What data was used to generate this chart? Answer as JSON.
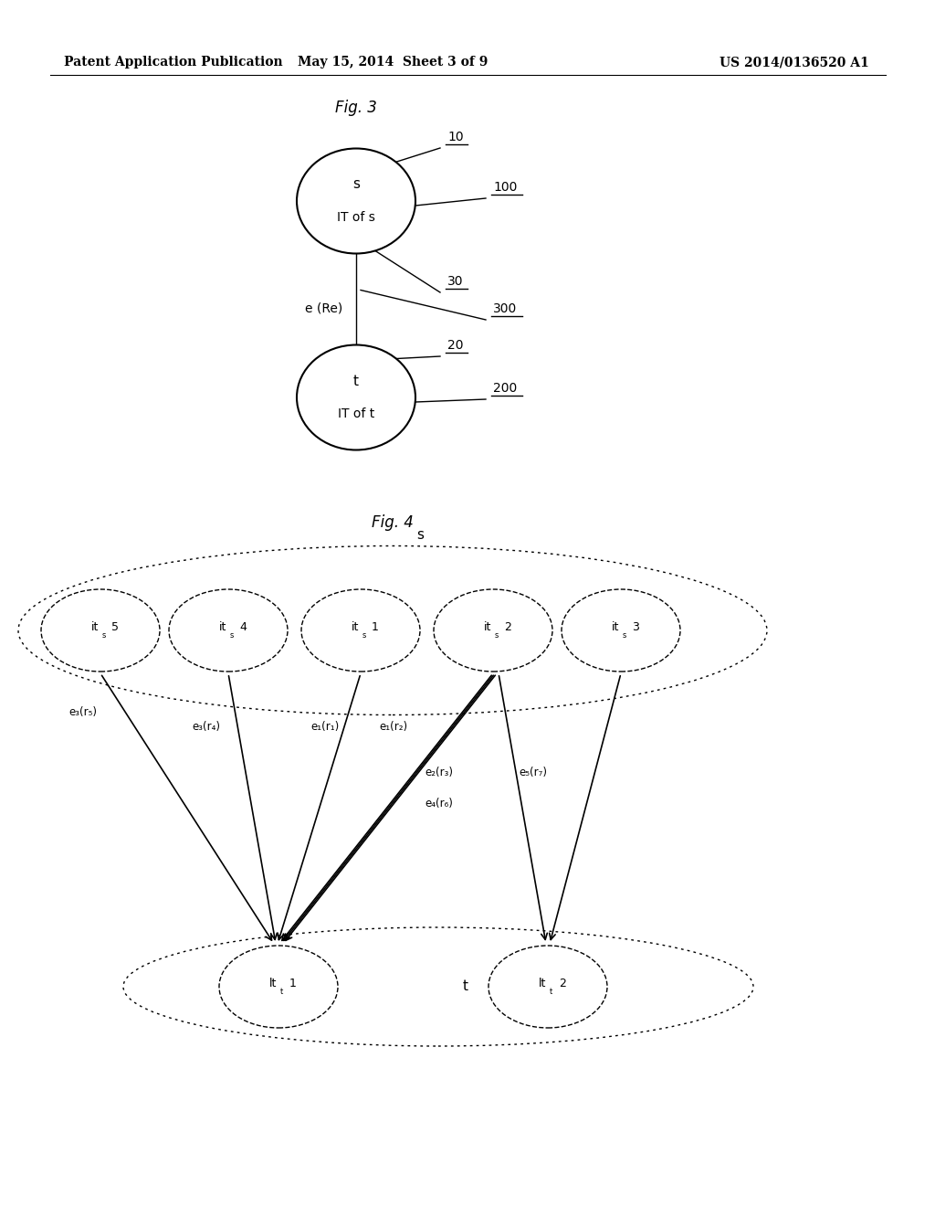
{
  "header_left": "Patent Application Publication",
  "header_mid": "May 15, 2014  Sheet 3 of 9",
  "header_right": "US 2014/0136520 A1",
  "fig3_title": "Fig. 3",
  "fig4_title": "Fig. 4",
  "bg_color": "#ffffff"
}
